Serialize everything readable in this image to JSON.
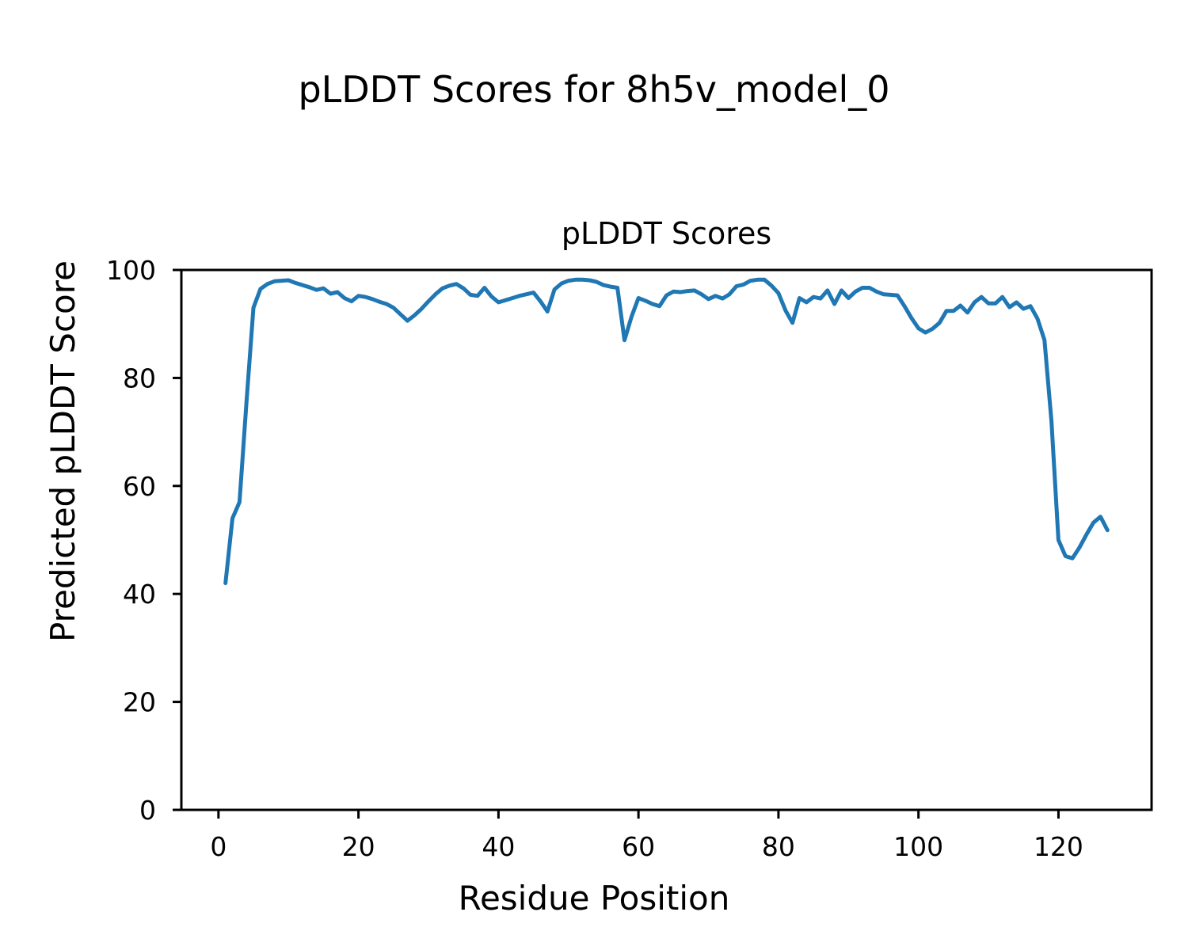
{
  "chart_data": {
    "type": "line",
    "suptitle": "pLDDT Scores for 8h5v_model_0",
    "title": "pLDDT Scores",
    "xlabel": "Residue Position",
    "ylabel": "Predicted pLDDT Score",
    "line_color": "#1f77b4",
    "background_color": "#ffffff",
    "axis_color": "#000000",
    "grid": false,
    "legend": "none",
    "xlim": [
      -5.3,
      133.3
    ],
    "ylim": [
      0,
      100
    ],
    "xticks": [
      0,
      20,
      40,
      60,
      80,
      100,
      120
    ],
    "yticks": [
      0,
      20,
      40,
      60,
      80,
      100
    ],
    "x_start": 1,
    "x_step": 1,
    "values": [
      42.0,
      54.0,
      57.0,
      75.5,
      93.0,
      96.5,
      97.4,
      97.9,
      98.0,
      98.1,
      97.6,
      97.2,
      96.8,
      96.3,
      96.6,
      95.6,
      95.9,
      94.8,
      94.2,
      95.2,
      95.0,
      94.6,
      94.1,
      93.7,
      93.0,
      91.8,
      90.6,
      91.6,
      92.8,
      94.2,
      95.5,
      96.6,
      97.1,
      97.4,
      96.6,
      95.4,
      95.2,
      96.7,
      95.1,
      94.0,
      94.4,
      94.8,
      95.2,
      95.5,
      95.8,
      94.2,
      92.3,
      96.4,
      97.5,
      98.0,
      98.2,
      98.2,
      98.1,
      97.8,
      97.2,
      96.9,
      96.7,
      87.0,
      91.3,
      94.8,
      94.3,
      93.7,
      93.3,
      95.3,
      96.0,
      95.9,
      96.1,
      96.2,
      95.5,
      94.6,
      95.2,
      94.7,
      95.5,
      97.0,
      97.3,
      98.0,
      98.2,
      98.2,
      97.1,
      95.7,
      92.5,
      90.2,
      94.8,
      94.0,
      95.0,
      94.7,
      96.2,
      93.7,
      96.2,
      94.8,
      96.0,
      96.7,
      96.7,
      96.0,
      95.5,
      95.4,
      95.3,
      93.3,
      91.1,
      89.2,
      88.4,
      89.1,
      90.2,
      92.4,
      92.4,
      93.4,
      92.1,
      94.0,
      95.0,
      93.8,
      93.8,
      95.0,
      93.1,
      94.0,
      92.8,
      93.3,
      91.0,
      87.0,
      72.0,
      50.0,
      47.0,
      46.6,
      48.6,
      51.0,
      53.2,
      54.3,
      51.8
    ]
  }
}
